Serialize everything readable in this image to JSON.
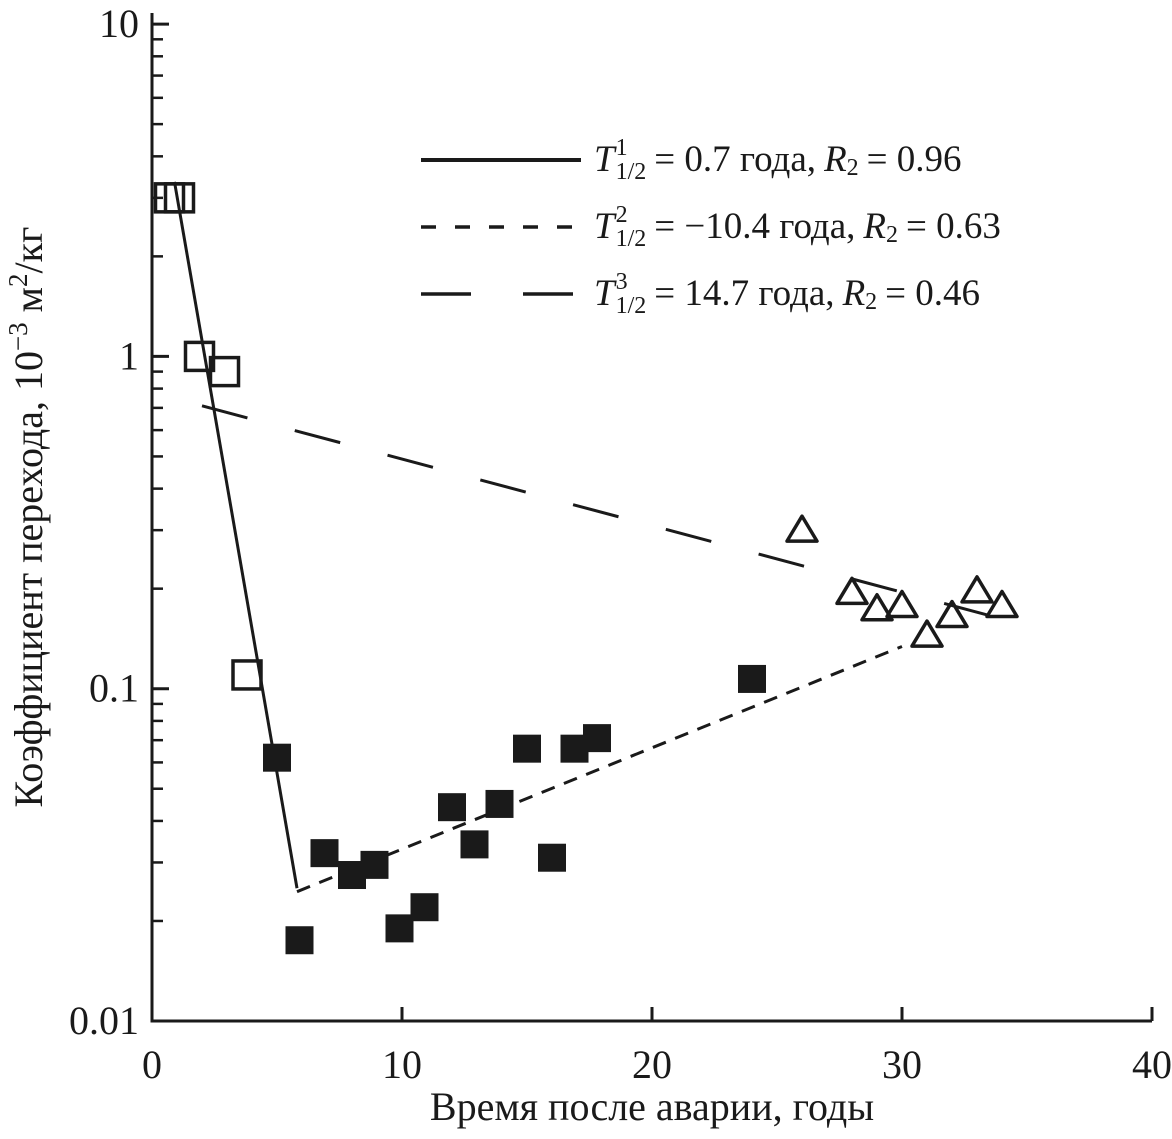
{
  "figure": {
    "background": "#ffffff",
    "ink_color": "#1a1a1a"
  },
  "axes": {
    "x_title": "Время после аварии, годы",
    "y_title_parts": {
      "a": "Коэффициент перехода, 10",
      "sup1": "−3",
      "b": " м",
      "sup2": "2",
      "c": "/кг"
    }
  },
  "legend": {
    "rows": [
      {
        "t": "T",
        "sup": "1",
        "sub": "1/2",
        "mid": "= 0.7 года,",
        "r": "R",
        "rsub": "2",
        "tail": "= 0.96",
        "style": "solid"
      },
      {
        "t": "T",
        "sup": "2",
        "sub": "1/2",
        "mid": "= −10.4 года,",
        "r": "R",
        "rsub": "2",
        "tail": "= 0.63",
        "style": "short-dash"
      },
      {
        "t": "T",
        "sup": "3",
        "sub": "1/2",
        "mid": "= 14.7 года,",
        "r": "R",
        "rsub": "2",
        "tail": "= 0.46",
        "style": "long-dash"
      }
    ]
  },
  "chart_data": {
    "type": "scatter",
    "title": "",
    "xlabel": "Время после аварии, годы",
    "ylabel": "Коэффициент перехода, 10⁻³ м²/кг",
    "x_axis": {
      "scale": "linear",
      "range": [
        0,
        40
      ],
      "ticks": [
        0,
        10,
        20,
        30,
        40
      ]
    },
    "y_axis": {
      "scale": "log",
      "range": [
        0.01,
        10
      ],
      "ticks": [
        10,
        1,
        0.1,
        0.01
      ],
      "tick_labels": [
        "10",
        "1",
        "0.1",
        "0.01"
      ],
      "minor_ticks_per_decade": [
        2,
        3,
        4,
        5,
        6,
        7,
        8,
        9
      ]
    },
    "grid": false,
    "legend_position": "upper center",
    "series": [
      {
        "name": "open squares",
        "marker": "open-square",
        "points": [
          [
            0.7,
            3.0
          ],
          [
            1.1,
            3.0
          ],
          [
            1.9,
            1.0
          ],
          [
            2.9,
            0.9
          ],
          [
            3.8,
            0.11
          ]
        ]
      },
      {
        "name": "filled squares",
        "marker": "filled-square",
        "points": [
          [
            5,
            0.062
          ],
          [
            5.9,
            0.0175
          ],
          [
            6.9,
            0.032
          ],
          [
            8,
            0.0275
          ],
          [
            8.9,
            0.0295
          ],
          [
            9.9,
            0.019
          ],
          [
            10.9,
            0.022
          ],
          [
            12,
            0.044
          ],
          [
            12.9,
            0.034
          ],
          [
            13.9,
            0.045
          ],
          [
            15,
            0.066
          ],
          [
            16,
            0.031
          ],
          [
            16.9,
            0.066
          ],
          [
            17.8,
            0.071
          ],
          [
            24,
            0.107
          ]
        ]
      },
      {
        "name": "open triangles",
        "marker": "open-triangle",
        "points": [
          [
            26,
            0.3
          ],
          [
            28,
            0.195
          ],
          [
            29,
            0.174
          ],
          [
            30,
            0.178
          ],
          [
            31,
            0.145
          ],
          [
            32,
            0.166
          ],
          [
            33,
            0.197
          ],
          [
            34,
            0.178
          ]
        ]
      }
    ],
    "fit_lines": [
      {
        "name": "T1/2 = 0.7 года, R2 = 0.96",
        "style": "solid",
        "from": [
          0.9,
          3.35
        ],
        "to": [
          5.8,
          0.0251
        ]
      },
      {
        "name": "T1/2 = −10.4 года, R2 = 0.63",
        "style": "short-dash",
        "from": [
          5.8,
          0.0245
        ],
        "to": [
          30.0,
          0.134
        ]
      },
      {
        "name": "T1/2 = 14.7 года, R2 = 0.46",
        "style": "long-dash",
        "from": [
          2.0,
          0.71
        ],
        "to": [
          34.3,
          0.16
        ]
      }
    ]
  }
}
